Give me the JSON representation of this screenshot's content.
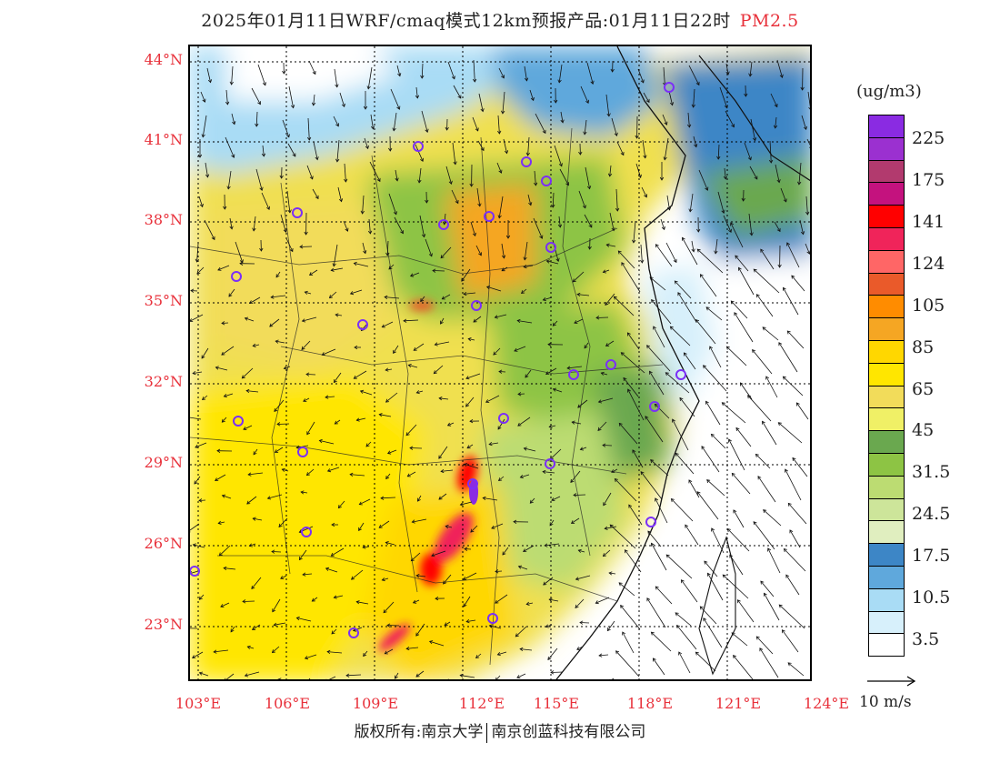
{
  "title": {
    "text": "2025年01月11日WRF/cmaq模式12km预报产品:01月11日22时",
    "variable": "PM2.5"
  },
  "axes": {
    "lat_labels": [
      "44°N",
      "41°N",
      "38°N",
      "35°N",
      "32°N",
      "29°N",
      "26°N",
      "23°N"
    ],
    "lon_labels": [
      "103°E",
      "106°E",
      "109°E",
      "112°E",
      "115°E",
      "118°E",
      "121°E",
      "124°E"
    ],
    "lat_range": [
      21,
      44.5
    ],
    "lon_range": [
      102.8,
      124
    ]
  },
  "legend": {
    "unit": "(ug/m3)",
    "labels": [
      "225",
      "175",
      "141",
      "124",
      "105",
      "85",
      "65",
      "45",
      "31.5",
      "24.5",
      "17.5",
      "10.5",
      "3.5"
    ],
    "colors": [
      "#8a2be2",
      "#9b30d0",
      "#b23a6e",
      "#c4127e",
      "#ff0000",
      "#f0245a",
      "#ff6666",
      "#ea5a2a",
      "#ff8c00",
      "#f5a623",
      "#ffd700",
      "#ffe600",
      "#f2dc5a",
      "#f0f066",
      "#6aa84f",
      "#8dc444",
      "#bcdc72",
      "#cde59a",
      "#e0eebf",
      "#3d86c6",
      "#5fa8dc",
      "#a9dcf5",
      "#d7f0fb",
      "#ffffff"
    ]
  },
  "wind_reference": {
    "label": "10 m/s"
  },
  "footer": {
    "copyright": "版权所有:南京大学",
    "company": "南京创蓝科技有限公司"
  }
}
